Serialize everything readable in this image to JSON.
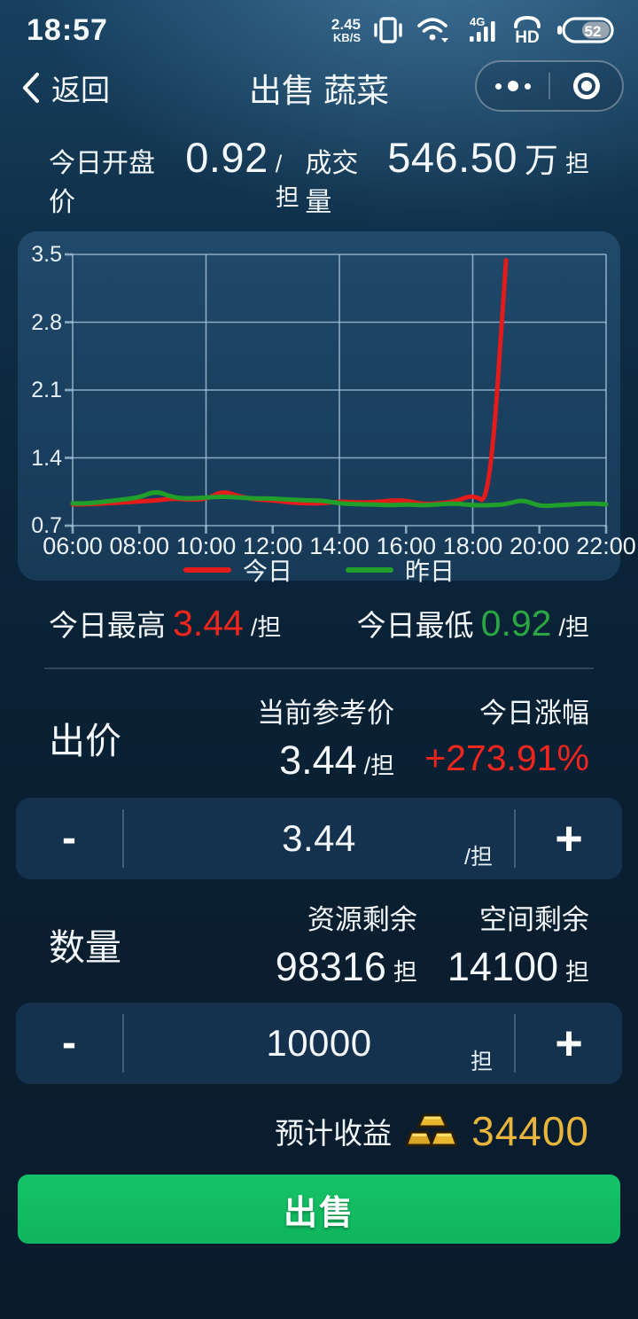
{
  "status_bar": {
    "time": "18:57",
    "net_speed_value": "2.45",
    "net_speed_unit": "KB/S",
    "network_type": "4G",
    "volte": "HD",
    "battery_percent": "52"
  },
  "nav": {
    "back_label": "返回",
    "title": "出售 蔬菜"
  },
  "summary": {
    "open_label": "今日开盘价",
    "open_value": "0.92",
    "open_unit": "/担",
    "volume_label": "成交量",
    "volume_value": "546.50",
    "volume_wan": "万",
    "volume_unit": "担"
  },
  "chart_data": {
    "type": "line",
    "title": "",
    "xlabel": "",
    "ylabel": "",
    "xlim": [
      6,
      22
    ],
    "ylim": [
      0.7,
      3.5
    ],
    "y_ticks": [
      0.7,
      1.4,
      2.1,
      2.8,
      3.5
    ],
    "x_tick_hours": [
      6,
      8,
      10,
      12,
      14,
      16,
      18,
      20,
      22
    ],
    "x_tick_labels": [
      "06:00",
      "08:00",
      "10:00",
      "12:00",
      "14:00",
      "16:00",
      "18:00",
      "20:00",
      "22:00"
    ],
    "grid_hours_x": [
      6,
      10,
      14,
      18,
      22
    ],
    "grid": true,
    "legend_position": "bottom",
    "series": [
      {
        "name": "今日",
        "color": "#e31b1b",
        "x": [
          6,
          6.5,
          7,
          7.5,
          8,
          8.5,
          9,
          9.5,
          10,
          10.5,
          11,
          11.5,
          12,
          12.5,
          13,
          13.5,
          14,
          14.5,
          15,
          15.5,
          16,
          16.5,
          17,
          17.5,
          18,
          18.5,
          19
        ],
        "values": [
          0.92,
          0.92,
          0.93,
          0.94,
          0.95,
          0.96,
          0.98,
          0.97,
          0.97,
          1.06,
          1.0,
          0.97,
          0.96,
          0.94,
          0.93,
          0.93,
          0.95,
          0.94,
          0.94,
          0.96,
          0.96,
          0.92,
          0.93,
          0.95,
          1.02,
          0.92,
          3.44
        ]
      },
      {
        "name": "昨日",
        "color": "#20a02a",
        "x": [
          6,
          6.5,
          7,
          7.5,
          8,
          8.5,
          9,
          9.5,
          10,
          10.5,
          11,
          11.5,
          12,
          12.5,
          13,
          13.5,
          14,
          14.5,
          15,
          15.5,
          16,
          16.5,
          17,
          17.5,
          18,
          18.5,
          19,
          19.5,
          20,
          20.5,
          21,
          21.5,
          22
        ],
        "values": [
          0.93,
          0.93,
          0.95,
          0.97,
          0.99,
          1.06,
          0.99,
          0.98,
          0.99,
          1.0,
          0.99,
          0.98,
          0.98,
          0.97,
          0.96,
          0.96,
          0.93,
          0.92,
          0.92,
          0.91,
          0.92,
          0.91,
          0.92,
          0.93,
          0.91,
          0.91,
          0.92,
          0.97,
          0.9,
          0.91,
          0.92,
          0.93,
          0.92
        ]
      }
    ]
  },
  "today_stats": {
    "high_label": "今日最高",
    "high_value": "3.44",
    "high_unit": "/担",
    "low_label": "今日最低",
    "low_value": "0.92",
    "low_unit": "/担"
  },
  "bid": {
    "section_label": "出价",
    "ref_label": "当前参考价",
    "ref_value": "3.44",
    "ref_unit": "/担",
    "change_label": "今日涨幅",
    "change_value": "+273.91%"
  },
  "price_stepper": {
    "minus_label": "-",
    "value": "3.44",
    "unit": "/担",
    "plus_label": "+"
  },
  "quantity": {
    "section_label": "数量",
    "resource_label": "资源剩余",
    "resource_value": "98316",
    "resource_unit": "担",
    "space_label": "空间剩余",
    "space_value": "14100",
    "space_unit": "担"
  },
  "quantity_stepper": {
    "minus_label": "-",
    "value": "10000",
    "unit": "担",
    "plus_label": "+"
  },
  "income": {
    "label": "预计收益",
    "value": "34400",
    "icon": "gold-ingots-icon"
  },
  "sell_button": {
    "label": "出售"
  },
  "colors": {
    "accent_red": "#f2261d",
    "accent_green": "#2aa742",
    "line_red": "#e31b1b",
    "line_green": "#20a02a",
    "gold": "#e9b43c",
    "button_green": "#12b860"
  }
}
